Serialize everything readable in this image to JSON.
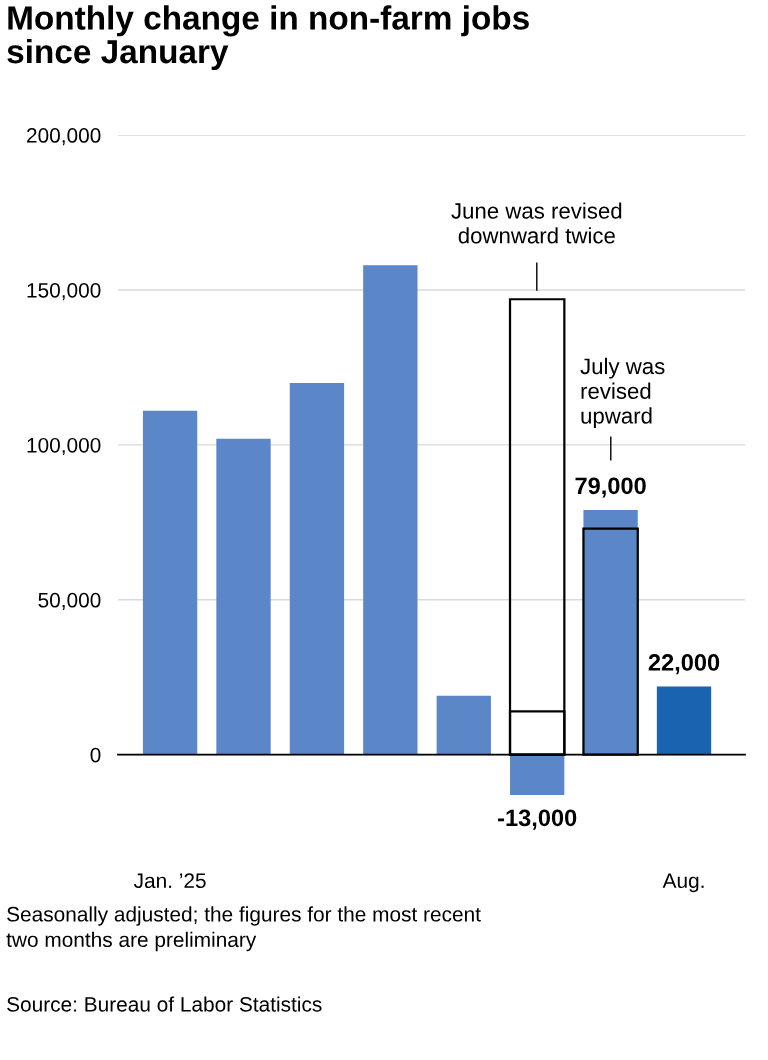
{
  "chart_data": {
    "type": "bar",
    "title": "Monthly change in non-farm jobs\nsince January",
    "categories": [
      "Jan. ’25",
      null,
      null,
      null,
      null,
      null,
      null,
      "Aug."
    ],
    "series": [
      {
        "colors": [
          "#5b86c8",
          "#5b86c8",
          "#5b86c8",
          "#5b86c8",
          "#5b86c8",
          "#5b86c8",
          "#5b86c8",
          "#1a63b0"
        ],
        "values": [
          111000,
          102000,
          120000,
          158000,
          19000,
          -13000,
          79000,
          22000
        ],
        "value_labels": [
          null,
          null,
          null,
          null,
          null,
          "-13,000",
          "79,000",
          "22,000"
        ]
      },
      {
        "color": "#000000",
        "values": [
          null,
          null,
          null,
          null,
          null,
          147000,
          73000,
          null
        ]
      },
      {
        "color": "#000000",
        "values": [
          null,
          null,
          null,
          null,
          null,
          14000,
          null,
          null
        ]
      }
    ],
    "ylim": [
      -13000,
      200000
    ],
    "yticks": [
      {
        "value": 0,
        "label": "0"
      },
      {
        "value": 50000,
        "label": "50,000"
      },
      {
        "value": 100000,
        "label": "100,000"
      },
      {
        "value": 150000,
        "label": "150,000"
      },
      {
        "value": 200000,
        "label": "200,000"
      }
    ],
    "grid": "y",
    "annotations": [
      "June was revised\ndownward twice",
      "July was\nrevised\nupward",
      "Seasonally adjusted; the figures for the most recent\ntwo months are preliminary",
      "Source: Bureau of Labor Statistics"
    ]
  }
}
